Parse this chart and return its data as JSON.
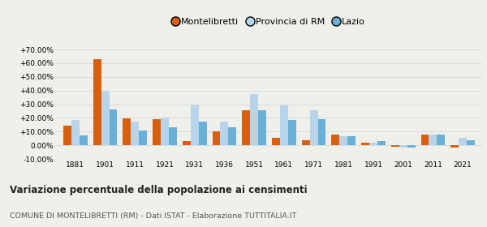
{
  "years": [
    1881,
    1901,
    1911,
    1921,
    1931,
    1936,
    1951,
    1961,
    1971,
    1981,
    1991,
    2001,
    2011,
    2021
  ],
  "montelibretti": [
    14.5,
    63.0,
    19.5,
    19.0,
    3.0,
    10.0,
    25.5,
    5.5,
    3.5,
    7.5,
    2.0,
    -1.0,
    8.0,
    -1.5
  ],
  "provincia_rm": [
    18.5,
    40.0,
    17.5,
    20.5,
    30.0,
    17.5,
    37.5,
    29.0,
    25.5,
    6.5,
    2.0,
    -1.5,
    7.5,
    5.5
  ],
  "lazio": [
    7.0,
    26.0,
    11.0,
    13.0,
    17.5,
    13.0,
    25.5,
    18.5,
    19.0,
    6.5,
    3.0,
    -1.5,
    7.5,
    3.5
  ],
  "color_montelibretti": "#d95f0e",
  "color_provincia": "#b8d4ea",
  "color_lazio": "#6aafd6",
  "title": "Variazione percentuale della popolazione ai censimenti",
  "subtitle": "COMUNE DI MONTELIBRETTI (RM) - Dati ISTAT - Elaborazione TUTTITALIA.IT",
  "ylim": [
    -10,
    73
  ],
  "yticks": [
    -10,
    0,
    10,
    20,
    30,
    40,
    50,
    60,
    70
  ],
  "ytick_labels": [
    "-10.00%",
    "0.00%",
    "+10.00%",
    "+20.00%",
    "+30.00%",
    "+40.00%",
    "+50.00%",
    "+60.00%",
    "+70.00%"
  ],
  "legend_labels": [
    "Montelibretti",
    "Provincia di RM",
    "Lazio"
  ],
  "bar_width": 0.27,
  "background_color": "#f0f0eb"
}
